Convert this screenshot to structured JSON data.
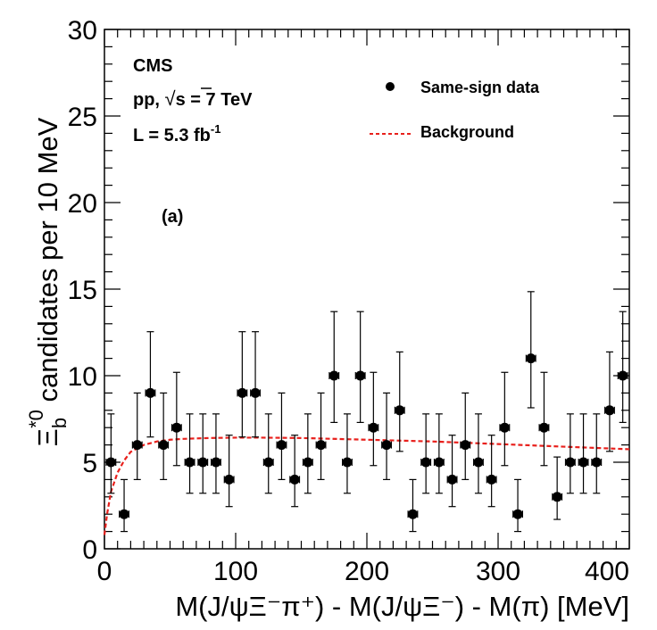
{
  "chart_data": {
    "type": "scatter",
    "title": "",
    "xlabel": "M(J/ψΞ⁻π⁺) - M(J/ψΞ⁻) - M(π) [MeV]",
    "ylabel": "Ξ*⁰_b candidates per 10 MeV",
    "xlim": [
      0,
      400
    ],
    "ylim": [
      0,
      30
    ],
    "x_ticks": [
      0,
      100,
      200,
      300,
      400
    ],
    "y_ticks": [
      0,
      5,
      10,
      15,
      20,
      25,
      30
    ],
    "x_tick_labels": [
      "0",
      "100",
      "200",
      "300",
      "400"
    ],
    "y_tick_labels": [
      "0",
      "5",
      "10",
      "15",
      "20",
      "25",
      "30"
    ],
    "bin_width": 10,
    "series": [
      {
        "name": "Same-sign data",
        "kind": "points",
        "x": [
          5,
          15,
          25,
          35,
          45,
          55,
          65,
          75,
          85,
          95,
          105,
          115,
          125,
          135,
          145,
          155,
          165,
          175,
          185,
          195,
          205,
          215,
          225,
          235,
          245,
          255,
          265,
          275,
          285,
          295,
          305,
          315,
          325,
          335,
          345,
          355,
          365,
          375,
          385,
          395
        ],
        "y": [
          5,
          2,
          6,
          9,
          6,
          7,
          5,
          5,
          5,
          4,
          9,
          9,
          5,
          6,
          4,
          5,
          6,
          10,
          5,
          10,
          7,
          6,
          8,
          2,
          5,
          5,
          4,
          6,
          5,
          4,
          7,
          2,
          11,
          7,
          3,
          5,
          5,
          5,
          8,
          10
        ]
      },
      {
        "name": "Background",
        "kind": "line",
        "style": "dashed",
        "color": "#e8201c",
        "x": [
          0,
          2,
          5,
          10,
          15,
          20,
          30,
          40,
          50,
          60,
          80,
          100,
          120,
          150,
          200,
          250,
          300,
          350,
          400
        ],
        "y": [
          0.8,
          2.0,
          3.3,
          4.4,
          5.1,
          5.6,
          6.0,
          6.2,
          6.3,
          6.35,
          6.4,
          6.42,
          6.42,
          6.4,
          6.3,
          6.2,
          6.05,
          5.9,
          5.75
        ]
      }
    ],
    "annotations": {
      "experiment": "CMS",
      "collision_prefix": "pp, ",
      "sqrt": "√",
      "collision_energy": "s = 7 TeV",
      "lumi": "L = 5.3 fb",
      "lumi_sup": "-1",
      "panel": "(a)"
    },
    "legend": {
      "placement": "top-right",
      "entries": [
        "Same-sign data",
        "Background"
      ]
    }
  }
}
